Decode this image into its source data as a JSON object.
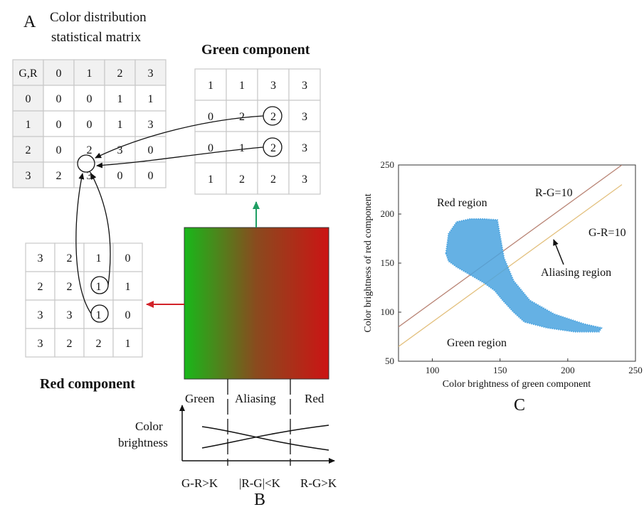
{
  "panel_labels": {
    "a": "A",
    "b": "B",
    "c": "C"
  },
  "colors": {
    "red": "#d2232a",
    "green": "#1e9e63",
    "black": "#111111",
    "scatter": "#4aa3df"
  },
  "matrix": {
    "title_line1": "Color distribution",
    "title_line2": "statistical matrix",
    "corner": "G,R",
    "col_headers": [
      "0",
      "1",
      "2",
      "3"
    ],
    "row_headers": [
      "0",
      "1",
      "2",
      "3"
    ],
    "rows": [
      [
        "0",
        "0",
        "1",
        "1"
      ],
      [
        "0",
        "0",
        "1",
        "3"
      ],
      [
        "0",
        "2",
        "3",
        "0"
      ],
      [
        "2",
        "3",
        "0",
        "0"
      ]
    ]
  },
  "green_component": {
    "title": "Green component",
    "rows": [
      [
        "1",
        "1",
        "3",
        "3"
      ],
      [
        "0",
        "2",
        "2",
        "3"
      ],
      [
        "0",
        "1",
        "2",
        "3"
      ],
      [
        "1",
        "2",
        "2",
        "3"
      ]
    ]
  },
  "red_component": {
    "title": "Red component",
    "rows": [
      [
        "3",
        "2",
        "1",
        "0"
      ],
      [
        "2",
        "2",
        "1",
        "1"
      ],
      [
        "3",
        "3",
        "1",
        "0"
      ],
      [
        "3",
        "2",
        "2",
        "1"
      ]
    ]
  },
  "gradient": {
    "col_labels": [
      "Green",
      "Aliasing",
      "Red"
    ],
    "ylabel_line1": "Color",
    "ylabel_line2": "brightness",
    "x_labels": [
      "G-R>K",
      "|R-G|<K",
      "R-G>K"
    ]
  },
  "chart_data": {
    "type": "scatter",
    "xlabel": "Color brightness of green component",
    "ylabel": "Color brightness of red component",
    "xlim": [
      75,
      250
    ],
    "ylim": [
      50,
      250
    ],
    "xticks": [
      "100",
      "150",
      "200",
      "250"
    ],
    "yticks": [
      "50",
      "100",
      "150",
      "200",
      "250"
    ],
    "lines": [
      {
        "name": "R-G=10",
        "points": [
          [
            75,
            85
          ],
          [
            240,
            250
          ]
        ]
      },
      {
        "name": "G-R=10",
        "points": [
          [
            75,
            65
          ],
          [
            240,
            230
          ]
        ]
      }
    ],
    "annotations": [
      "Red region",
      "Green region",
      "Aliasing region",
      "R-G=10",
      "G-R=10"
    ],
    "cluster_outline": [
      [
        110,
        160
      ],
      [
        112,
        180
      ],
      [
        118,
        192
      ],
      [
        128,
        195
      ],
      [
        138,
        195
      ],
      [
        148,
        194
      ],
      [
        150,
        178
      ],
      [
        153,
        155
      ],
      [
        160,
        132
      ],
      [
        172,
        112
      ],
      [
        190,
        98
      ],
      [
        212,
        88
      ],
      [
        225,
        84
      ],
      [
        223,
        80
      ],
      [
        205,
        80
      ],
      [
        185,
        84
      ],
      [
        168,
        90
      ],
      [
        160,
        100
      ],
      [
        152,
        112
      ],
      [
        146,
        122
      ],
      [
        138,
        130
      ],
      [
        128,
        138
      ],
      [
        118,
        146
      ],
      [
        112,
        152
      ]
    ],
    "grid": false
  }
}
